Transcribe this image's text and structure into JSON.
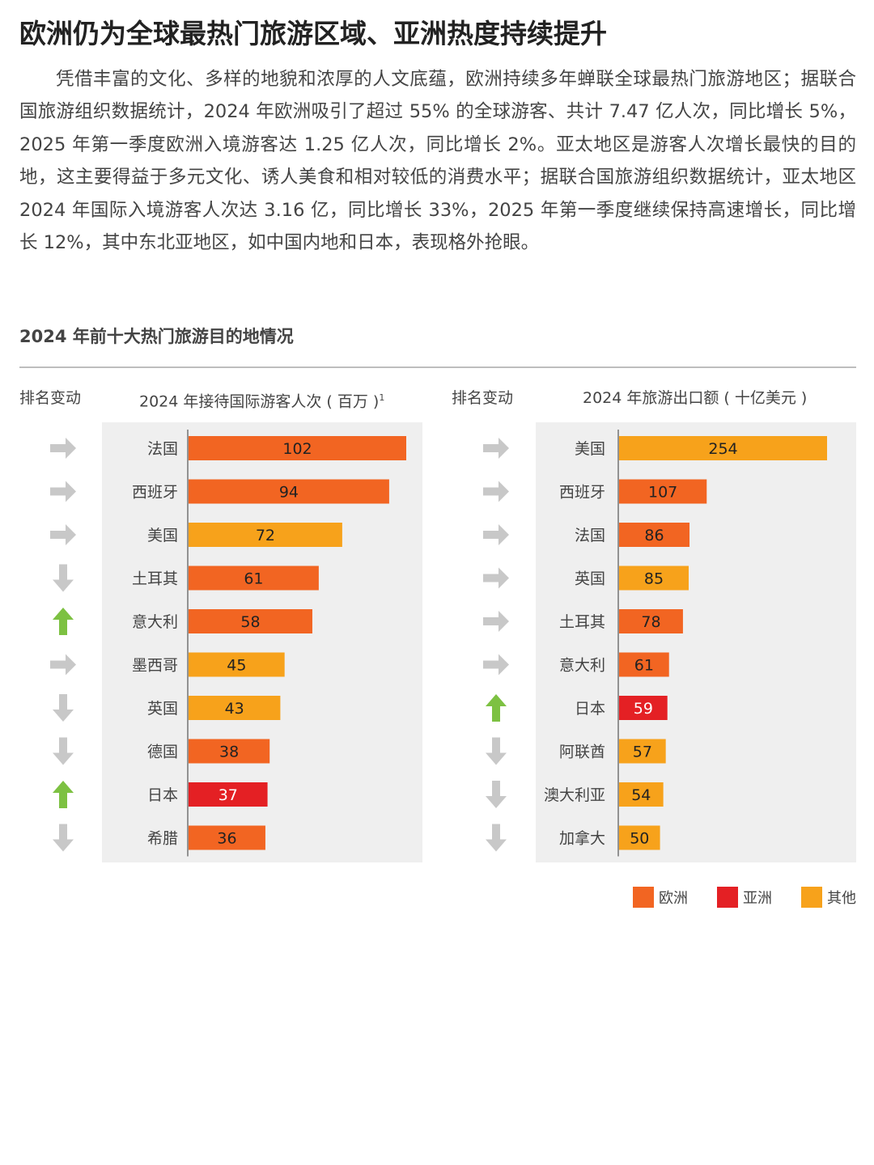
{
  "headline": "欧洲仍为全球最热门旅游区域、亚洲热度持续提升",
  "intro": "凭借丰富的文化、多样的地貌和浓厚的人文底蕴，欧洲持续多年蝉联全球最热门旅游地区；据联合国旅游组织数据统计，2024 年欧洲吸引了超过 55% 的全球游客、共计 7.47 亿人次，同比增长 5%，2025 年第一季度欧洲入境游客达 1.25 亿人次，同比增长 2%。亚太地区是游客人次增长最快的目的地，这主要得益于多元文化、诱人美食和相对较低的消费水平；据联合国旅游组织数据统计，亚太地区 2024 年国际入境游客人次达 3.16 亿，同比增长 33%，2025 年第一季度继续保持高速增长，同比增长 12%，其中东北亚地区，如中国内地和日本，表现格外抢眼。",
  "section_title": "2024 年前十大热门旅游目的地情况",
  "colors": {
    "欧洲": "#f26522",
    "亚洲": "#e42024",
    "其他": "#f7a21b",
    "arrow_gray": "#c8c8c8",
    "arrow_green": "#7dc142"
  },
  "legend": [
    {
      "label": "欧洲",
      "region": "欧洲"
    },
    {
      "label": "亚洲",
      "region": "亚洲"
    },
    {
      "label": "其他",
      "region": "其他"
    }
  ],
  "chart_data": [
    {
      "type": "bar",
      "rank_header": "排名变动",
      "title": "2024 年接待国际游客人次 ( 百万 )",
      "footnote_mark": "1",
      "categories": [
        "法国",
        "西班牙",
        "美国",
        "土耳其",
        "意大利",
        "墨西哥",
        "英国",
        "德国",
        "日本",
        "希腊"
      ],
      "values": [
        102,
        94,
        72,
        61,
        58,
        45,
        43,
        38,
        37,
        36
      ],
      "region": [
        "欧洲",
        "欧洲",
        "其他",
        "欧洲",
        "欧洲",
        "其他",
        "其他",
        "欧洲",
        "亚洲",
        "欧洲"
      ],
      "rank_change": [
        "same",
        "same",
        "same",
        "down",
        "up",
        "same",
        "down",
        "down",
        "up",
        "down"
      ],
      "xlim": [
        0,
        110
      ]
    },
    {
      "type": "bar",
      "rank_header": "排名变动",
      "title": "2024 年旅游出口额 ( 十亿美元 )",
      "categories": [
        "美国",
        "西班牙",
        "法国",
        "英国",
        "土耳其",
        "意大利",
        "日本",
        "阿联酋",
        "澳大利亚",
        "加拿大"
      ],
      "values": [
        254,
        107,
        86,
        85,
        78,
        61,
        59,
        57,
        54,
        50
      ],
      "region": [
        "其他",
        "欧洲",
        "欧洲",
        "其他",
        "欧洲",
        "欧洲",
        "亚洲",
        "其他",
        "其他",
        "其他"
      ],
      "rank_change": [
        "same",
        "same",
        "same",
        "same",
        "same",
        "same",
        "up",
        "down",
        "down",
        "down"
      ],
      "xlim": [
        0,
        276
      ]
    }
  ]
}
